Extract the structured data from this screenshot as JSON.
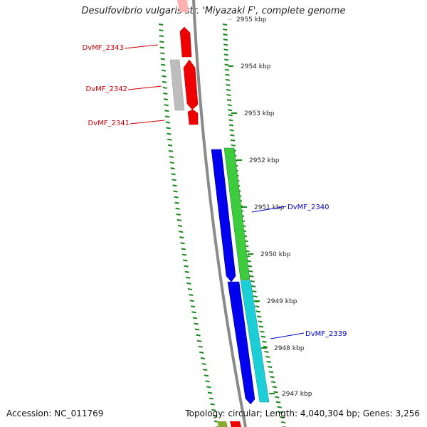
{
  "title": "Desulfovibrio vulgaris str. 'Miyazaki F', complete genome",
  "footer": {
    "accession": "Accession: NC_011769",
    "summary": "Topology: circular; Length: 4,040,304 bp; Genes: 3,256"
  },
  "colors": {
    "forward_gene_red": "#ff0000",
    "gray_gene": "#bdbdbd",
    "blue_gene": "#0000ee",
    "green_gene": "#3dcc3d",
    "cyan_gene": "#1ccfd6",
    "backbone": "#8a8a8a",
    "tick_green": "#1a8a1a",
    "left_label": "#cc0000",
    "right_label": "#0000cc"
  },
  "scale_ticks": [
    {
      "label": "2955 kbp",
      "faded": true
    },
    {
      "label": "2954 kbp"
    },
    {
      "label": "2953 kbp"
    },
    {
      "label": "2952 kbp"
    },
    {
      "label": "2951 kbp"
    },
    {
      "label": "2950 kbp"
    },
    {
      "label": "2949 kbp"
    },
    {
      "label": "2948 kbp"
    },
    {
      "label": "2947 kbp"
    }
  ],
  "gene_labels": [
    {
      "text": "DvMF_2343",
      "side": "left"
    },
    {
      "text": "DvMF_2342",
      "side": "left"
    },
    {
      "text": "DvMF_2341",
      "side": "left"
    },
    {
      "text": "DvMF_2340",
      "side": "right"
    },
    {
      "text": "DvMF_2339",
      "side": "right"
    }
  ]
}
